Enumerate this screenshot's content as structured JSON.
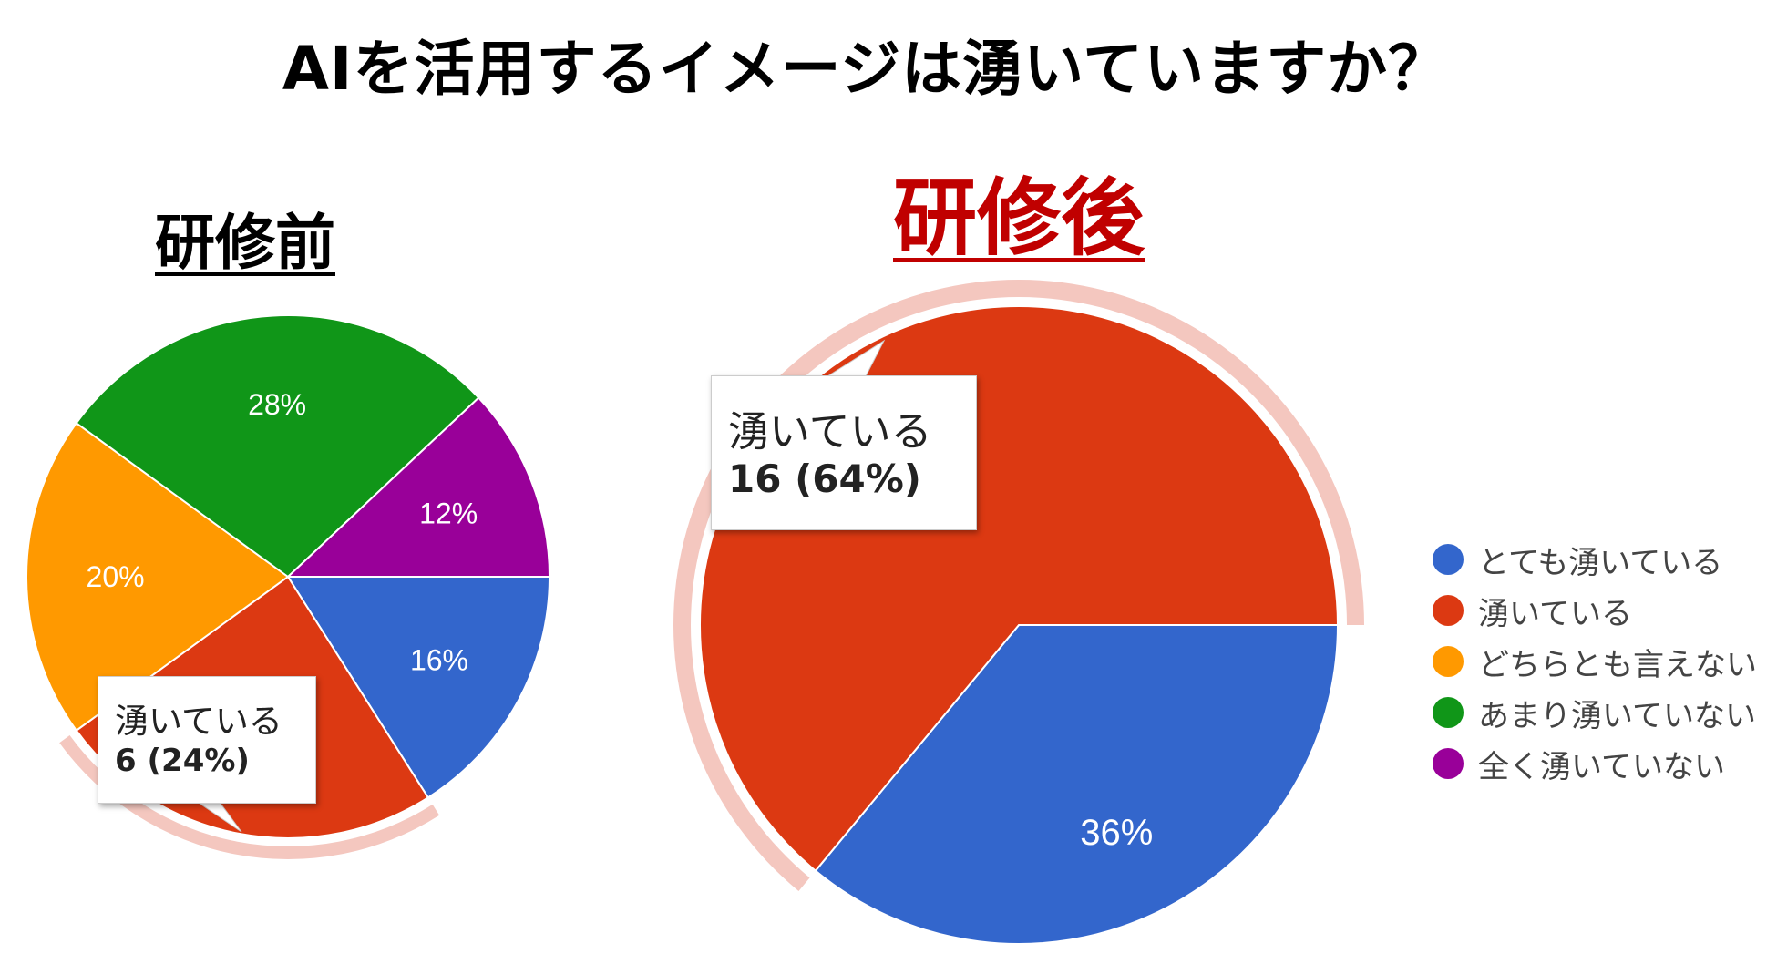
{
  "title": "AIを活用するイメージは湧いていますか？",
  "colors": {
    "categories": [
      "#3366cc",
      "#dc3912",
      "#ff9900",
      "#109618",
      "#990099"
    ],
    "highlight": "#f4c7bf",
    "after_heading": "#c00000",
    "slice_label": "#ffffff"
  },
  "legend": [
    "とても湧いている",
    "湧いている",
    "どちらとも言えない",
    "あまり湧いていない",
    "全く湧いていない"
  ],
  "chart_data": [
    {
      "type": "pie",
      "title": "研修前",
      "categories": [
        "とても湧いている",
        "湧いている",
        "どちらとも言えない",
        "あまり湧いていない",
        "全く湧いていない"
      ],
      "values": [
        4,
        6,
        5,
        7,
        3
      ],
      "slice_labels": [
        "16%",
        "",
        "20%",
        "28%",
        "12%"
      ],
      "highlighted_category": "湧いている",
      "tooltip": {
        "label": "湧いている",
        "value": "6 (24%)"
      }
    },
    {
      "type": "pie",
      "title": "研修後",
      "categories": [
        "とても湧いている",
        "湧いている",
        "どちらとも言えない",
        "あまり湧いていない",
        "全く湧いていない"
      ],
      "values": [
        9,
        16,
        0,
        0,
        0
      ],
      "slice_labels": [
        "36%",
        "",
        "",
        "",
        ""
      ],
      "highlighted_category": "湧いている",
      "tooltip": {
        "label": "湧いている",
        "value": "16 (64%)"
      }
    }
  ]
}
